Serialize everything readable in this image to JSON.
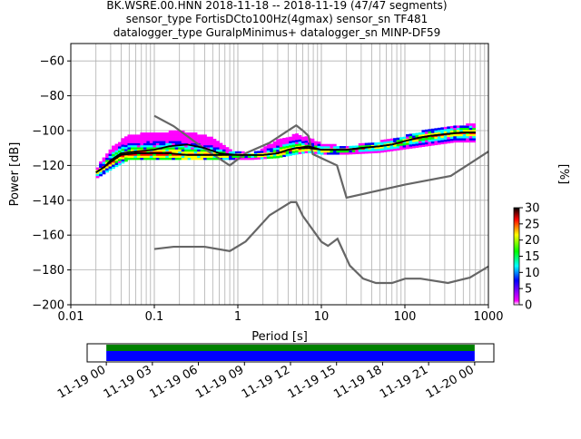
{
  "title_lines": [
    "BK.WSRE.00.HNN   2018-11-18 -- 2018-11-19  (47/47 segments)",
    "sensor_type FortisDCto100Hz(4gmax) sensor_sn TF481",
    "datalogger_type GuralpMinimus+ datalogger_sn MINP-DF59"
  ],
  "chart_data": [
    {
      "type": "heatmap",
      "xlabel": "Period [s]",
      "ylabel": "Power [dB]",
      "xscale": "log",
      "xlim": [
        0.01,
        1000
      ],
      "ylim": [
        -200,
        -50
      ],
      "grid": true,
      "x_ticks": [
        "0.01",
        "0.1",
        "1",
        "10",
        "100",
        "1000"
      ],
      "y_ticks": [
        "−60",
        "−80",
        "−100",
        "−120",
        "−140",
        "−160",
        "−180",
        "−200"
      ],
      "x_tick_values": [
        0.01,
        0.1,
        1,
        10,
        100,
        1000
      ],
      "y_tick_values": [
        -60,
        -80,
        -100,
        -120,
        -140,
        -160,
        -180,
        -200
      ],
      "series": [
        {
          "role": "new-high-noise-model",
          "color": "#666666",
          "points": [
            [
              0.1,
              -91.5
            ],
            [
              0.17,
              -97.4
            ],
            [
              0.4,
              -110.5
            ],
            [
              0.8,
              -120
            ],
            [
              1.24,
              -113
            ],
            [
              2.4,
              -107
            ],
            [
              4.3,
              -99
            ],
            [
              5.0,
              -97
            ],
            [
              6.0,
              -100
            ],
            [
              7.0,
              -103
            ],
            [
              7.9,
              -113.5
            ],
            [
              15.4,
              -120
            ],
            [
              20,
              -138.5
            ],
            [
              100,
              -131
            ],
            [
              354.8,
              -126
            ],
            [
              1000,
              -112
            ]
          ]
        },
        {
          "role": "new-low-noise-model",
          "color": "#666666",
          "points": [
            [
              0.1,
              -168
            ],
            [
              0.17,
              -166.7
            ],
            [
              0.4,
              -166.7
            ],
            [
              0.8,
              -169.2
            ],
            [
              1.24,
              -163.7
            ],
            [
              2.4,
              -148.6
            ],
            [
              4.3,
              -141.1
            ],
            [
              5.0,
              -141.1
            ],
            [
              6.0,
              -149
            ],
            [
              10,
              -163.8
            ],
            [
              12,
              -166.2
            ],
            [
              15.6,
              -162.1
            ],
            [
              21.9,
              -177.5
            ],
            [
              31.6,
              -185
            ],
            [
              45,
              -187.5
            ],
            [
              70,
              -187.5
            ],
            [
              101,
              -185
            ],
            [
              154,
              -185
            ],
            [
              328,
              -187.5
            ],
            [
              600,
              -184.4
            ],
            [
              1000,
              -178
            ]
          ]
        },
        {
          "role": "mean-psd",
          "color": "#000000",
          "points": [
            [
              0.02,
              -124
            ],
            [
              0.025,
              -121
            ],
            [
              0.03,
              -117
            ],
            [
              0.04,
              -113
            ],
            [
              0.06,
              -112
            ],
            [
              0.1,
              -111
            ],
            [
              0.15,
              -109
            ],
            [
              0.25,
              -108
            ],
            [
              0.4,
              -110
            ],
            [
              0.6,
              -113
            ],
            [
              1.0,
              -114
            ],
            [
              2.0,
              -114
            ],
            [
              3.0,
              -113
            ],
            [
              4.0,
              -111
            ],
            [
              5.0,
              -110
            ],
            [
              7.0,
              -109
            ],
            [
              10,
              -111
            ],
            [
              15,
              -111
            ],
            [
              20,
              -111
            ],
            [
              30,
              -110
            ],
            [
              50,
              -109
            ],
            [
              70,
              -108
            ],
            [
              100,
              -106
            ],
            [
              150,
              -104
            ],
            [
              200,
              -103
            ],
            [
              300,
              -102
            ],
            [
              500,
              -101
            ],
            [
              700,
              -101
            ]
          ]
        },
        {
          "role": "mode-psd",
          "color": "#000000",
          "points": [
            [
              0.02,
              -124
            ],
            [
              0.025,
              -121
            ],
            [
              0.03,
              -118
            ],
            [
              0.04,
              -114
            ],
            [
              0.06,
              -113
            ],
            [
              0.1,
              -113
            ],
            [
              0.15,
              -113
            ],
            [
              0.25,
              -114
            ],
            [
              0.4,
              -114
            ],
            [
              0.6,
              -114
            ],
            [
              1.0,
              -114
            ],
            [
              2.0,
              -114
            ],
            [
              3.0,
              -113
            ],
            [
              4.0,
              -111
            ],
            [
              5.0,
              -110
            ],
            [
              7.0,
              -110
            ],
            [
              10,
              -111
            ],
            [
              15,
              -111
            ],
            [
              20,
              -111
            ],
            [
              30,
              -110
            ],
            [
              50,
              -109
            ],
            [
              70,
              -108
            ],
            [
              100,
              -106
            ],
            [
              150,
              -104
            ],
            [
              200,
              -103
            ],
            [
              300,
              -102
            ],
            [
              500,
              -101
            ],
            [
              700,
              -101
            ]
          ]
        }
      ],
      "spread_band": {
        "upper": [
          [
            0.02,
            -122
          ],
          [
            0.03,
            -110
          ],
          [
            0.05,
            -102
          ],
          [
            0.1,
            -101
          ],
          [
            0.2,
            -100
          ],
          [
            0.3,
            -101
          ],
          [
            0.5,
            -104
          ],
          [
            0.8,
            -111
          ],
          [
            1.5,
            -113
          ],
          [
            3.0,
            -105
          ],
          [
            5.0,
            -102
          ],
          [
            7.0,
            -104
          ],
          [
            10,
            -107
          ],
          [
            20,
            -109
          ],
          [
            50,
            -106
          ],
          [
            100,
            -103
          ],
          [
            200,
            -99
          ],
          [
            400,
            -97
          ],
          [
            700,
            -96
          ]
        ],
        "lower": [
          [
            0.02,
            -127
          ],
          [
            0.03,
            -122
          ],
          [
            0.05,
            -116
          ],
          [
            0.1,
            -116
          ],
          [
            0.2,
            -116
          ],
          [
            0.3,
            -116
          ],
          [
            0.5,
            -116
          ],
          [
            0.8,
            -116
          ],
          [
            1.5,
            -116
          ],
          [
            3.0,
            -115
          ],
          [
            5.0,
            -113
          ],
          [
            7.0,
            -112
          ],
          [
            10,
            -113
          ],
          [
            20,
            -113
          ],
          [
            50,
            -112
          ],
          [
            100,
            -110
          ],
          [
            200,
            -108
          ],
          [
            400,
            -106
          ],
          [
            700,
            -106
          ]
        ]
      }
    },
    {
      "type": "timeline",
      "x_ticks": [
        "11-19 00",
        "11-19 03",
        "11-19 06",
        "11-19 09",
        "11-19 12",
        "11-19 15",
        "11-19 18",
        "11-19 21",
        "11-20 00"
      ],
      "x_range": [
        "11-18 22:45",
        "11-20 01:15"
      ],
      "bars": [
        {
          "role": "data-coverage",
          "color": "#008000",
          "start": "11-19 00",
          "end": "11-20 00"
        },
        {
          "role": "segments-used",
          "color": "#0000ff",
          "start": "11-19 00",
          "end": "11-20 00"
        }
      ]
    }
  ],
  "colorbar": {
    "label": "[%]",
    "min": 0,
    "max": 30,
    "ticks": [
      "0",
      "5",
      "10",
      "15",
      "20",
      "25",
      "30"
    ],
    "tick_values": [
      0,
      5,
      10,
      15,
      20,
      25,
      30
    ],
    "colors": [
      "#ffffff",
      "#ff00ff",
      "#0000ff",
      "#00ffff",
      "#00ff00",
      "#ffff00",
      "#ff0000",
      "#000000"
    ]
  }
}
